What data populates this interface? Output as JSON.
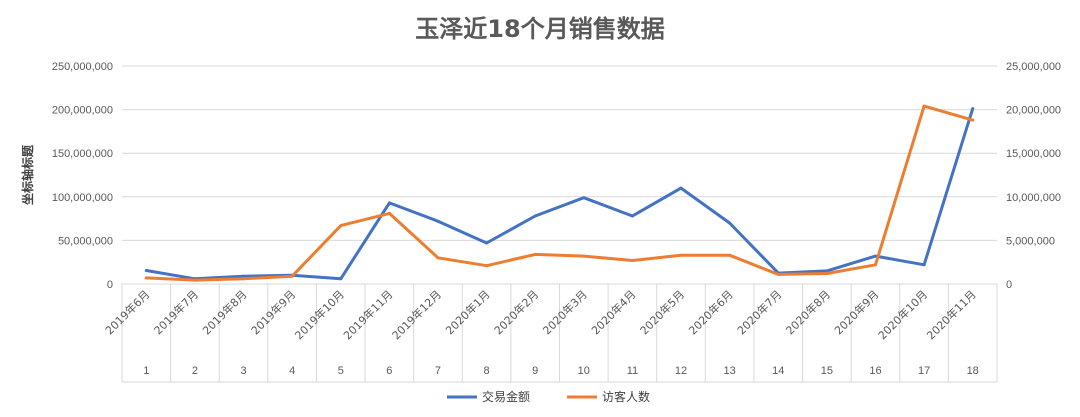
{
  "chart_data": {
    "type": "line",
    "title": "玉泽近18个月销售数据",
    "ylabel": "坐标轴标题",
    "x": [
      "2019年6月",
      "2019年7月",
      "2019年8月",
      "2019年9月",
      "2019年10月",
      "2019年11月",
      "2019年12月",
      "2020年1月",
      "2020年2月",
      "2020年3月",
      "2020年4月",
      "2020年5月",
      "2020年6月",
      "2020年7月",
      "2020年8月",
      "2020年9月",
      "2020年10月",
      "2020年11月"
    ],
    "x_index": [
      "1",
      "2",
      "3",
      "4",
      "5",
      "6",
      "7",
      "8",
      "9",
      "10",
      "11",
      "12",
      "13",
      "14",
      "15",
      "16",
      "17",
      "18"
    ],
    "y_left_lim": [
      0,
      250000000
    ],
    "y_left_ticks": [
      "0",
      "50,000,000",
      "100,000,000",
      "150,000,000",
      "200,000,000",
      "250,000,000"
    ],
    "y_right_lim": [
      0,
      25000000
    ],
    "y_right_ticks": [
      "0",
      "5,000,000",
      "10,000,000",
      "15,000,000",
      "20,000,000",
      "25,000,000"
    ],
    "grid": true,
    "legend_position": "bottom",
    "series": [
      {
        "name": "交易金额",
        "axis": "left",
        "color": "#4472C4",
        "values": [
          15500000,
          6000000,
          9000000,
          10000000,
          6000000,
          93000000,
          72000000,
          47000000,
          78000000,
          99000000,
          78000000,
          110000000,
          70000000,
          12500000,
          15000000,
          32000000,
          22000000,
          201000000
        ]
      },
      {
        "name": "访客人数",
        "axis": "right",
        "color": "#ED7D31",
        "values": [
          700000,
          450000,
          600000,
          900000,
          6700000,
          8100000,
          3000000,
          2100000,
          3400000,
          3200000,
          2700000,
          3300000,
          3300000,
          1100000,
          1200000,
          2200000,
          20400000,
          18800000
        ]
      }
    ]
  }
}
